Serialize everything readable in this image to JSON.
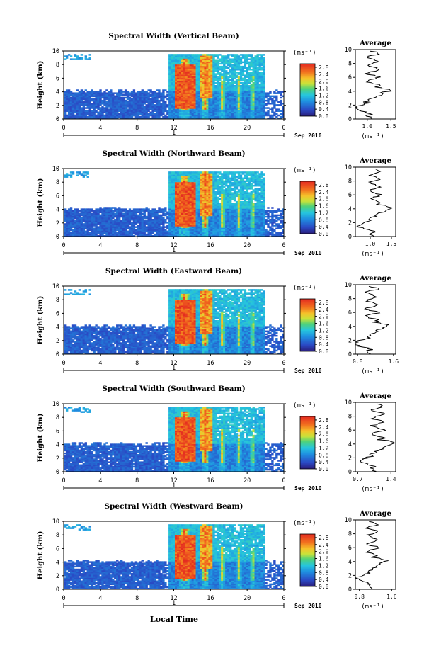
{
  "figure": {
    "xlabel": "Local Time"
  },
  "chart_data": [
    {
      "type": "heatmap",
      "title": "Spectral Width (Vertical Beam)",
      "ylabel": "Height (km)",
      "xticks": [
        "0",
        "4",
        "8",
        "12",
        "16",
        "20",
        "0"
      ],
      "yticks": [
        "0",
        "2",
        "4",
        "6",
        "8",
        "10"
      ],
      "xlim": [
        0,
        24
      ],
      "ylim": [
        0,
        10
      ],
      "day_marker": "1",
      "date_label": "Sep 2010",
      "colorbar": {
        "unit": "(ms⁻¹)",
        "ticks": [
          "0.0",
          "0.4",
          "0.8",
          "1.2",
          "1.6",
          "2.0",
          "2.4",
          "2.8"
        ],
        "range": [
          0,
          3.0
        ]
      },
      "average_panel": {
        "title": "Average",
        "xlabel": "(ms⁻¹)",
        "xticks": [
          "1.0",
          "1.5"
        ],
        "xlim": [
          0.75,
          1.6
        ],
        "yticks": [
          "0",
          "2",
          "4",
          "6",
          "8",
          "10"
        ]
      }
    },
    {
      "type": "heatmap",
      "title": "Spectral Width (Northward Beam)",
      "ylabel": "Height (km)",
      "xticks": [
        "0",
        "4",
        "8",
        "12",
        "16",
        "20",
        "0"
      ],
      "yticks": [
        "0",
        "2",
        "4",
        "6",
        "8",
        "10"
      ],
      "xlim": [
        0,
        24
      ],
      "ylim": [
        0,
        10
      ],
      "day_marker": "1",
      "date_label": "Sep 2010",
      "colorbar": {
        "unit": "(ms⁻¹)",
        "ticks": [
          "0.0",
          "0.4",
          "0.8",
          "1.2",
          "1.6",
          "2.0",
          "2.4",
          "2.8"
        ],
        "range": [
          0,
          3.0
        ]
      },
      "average_panel": {
        "title": "Average",
        "xlabel": "(ms⁻¹)",
        "xticks": [
          "1.0",
          "1.5"
        ],
        "xlim": [
          0.65,
          1.6
        ],
        "yticks": [
          "0",
          "2",
          "4",
          "6",
          "8",
          "10"
        ]
      }
    },
    {
      "type": "heatmap",
      "title": "Spectral Width (Eastward Beam)",
      "ylabel": "Height (km)",
      "xticks": [
        "0",
        "4",
        "8",
        "12",
        "16",
        "20",
        "0"
      ],
      "yticks": [
        "0",
        "2",
        "4",
        "6",
        "8",
        "10"
      ],
      "xlim": [
        0,
        24
      ],
      "ylim": [
        0,
        10
      ],
      "day_marker": "1",
      "date_label": "Sep 2010",
      "colorbar": {
        "unit": "(ms⁻¹)",
        "ticks": [
          "0.0",
          "0.4",
          "0.8",
          "1.2",
          "1.6",
          "2.0",
          "2.4",
          "2.8"
        ],
        "range": [
          0,
          3.0
        ]
      },
      "average_panel": {
        "title": "Average",
        "xlabel": "(ms⁻¹)",
        "xticks": [
          "0.8",
          "1.6"
        ],
        "xlim": [
          0.75,
          1.65
        ],
        "yticks": [
          "0",
          "2",
          "4",
          "6",
          "8",
          "10"
        ]
      }
    },
    {
      "type": "heatmap",
      "title": "Spectral Width (Southward Beam)",
      "ylabel": "Height (km)",
      "xticks": [
        "0",
        "4",
        "8",
        "12",
        "16",
        "20",
        "0"
      ],
      "yticks": [
        "0",
        "2",
        "4",
        "6",
        "8",
        "10"
      ],
      "xlim": [
        0,
        24
      ],
      "ylim": [
        0,
        10
      ],
      "day_marker": "1",
      "date_label": "Sep 2010",
      "colorbar": {
        "unit": "(ms⁻¹)",
        "ticks": [
          "0.0",
          "0.4",
          "0.8",
          "1.2",
          "1.6",
          "2.0",
          "2.4",
          "2.8"
        ],
        "range": [
          0,
          3.0
        ]
      },
      "average_panel": {
        "title": "Average",
        "xlabel": "(ms⁻¹)",
        "xticks": [
          "0.7",
          "1.4"
        ],
        "xlim": [
          0.65,
          1.5
        ],
        "yticks": [
          "0",
          "2",
          "4",
          "6",
          "8",
          "10"
        ]
      }
    },
    {
      "type": "heatmap",
      "title": "Spectral Width (Westward Beam)",
      "ylabel": "Height (km)",
      "xticks": [
        "0",
        "4",
        "8",
        "12",
        "16",
        "20",
        "0"
      ],
      "yticks": [
        "0",
        "2",
        "4",
        "6",
        "8",
        "10"
      ],
      "xlim": [
        0,
        24
      ],
      "ylim": [
        0,
        10
      ],
      "day_marker": "1",
      "date_label": "Sep 2010",
      "colorbar": {
        "unit": "(ms⁻¹)",
        "ticks": [
          "0.0",
          "0.4",
          "0.8",
          "1.2",
          "1.6",
          "2.0",
          "2.4",
          "2.8"
        ],
        "range": [
          0,
          3.0
        ]
      },
      "average_panel": {
        "title": "Average",
        "xlabel": "(ms⁻¹)",
        "xticks": [
          "0.8",
          "1.6"
        ],
        "xlim": [
          0.7,
          1.7
        ],
        "yticks": [
          "0",
          "2",
          "4",
          "6",
          "8",
          "10"
        ]
      }
    }
  ]
}
